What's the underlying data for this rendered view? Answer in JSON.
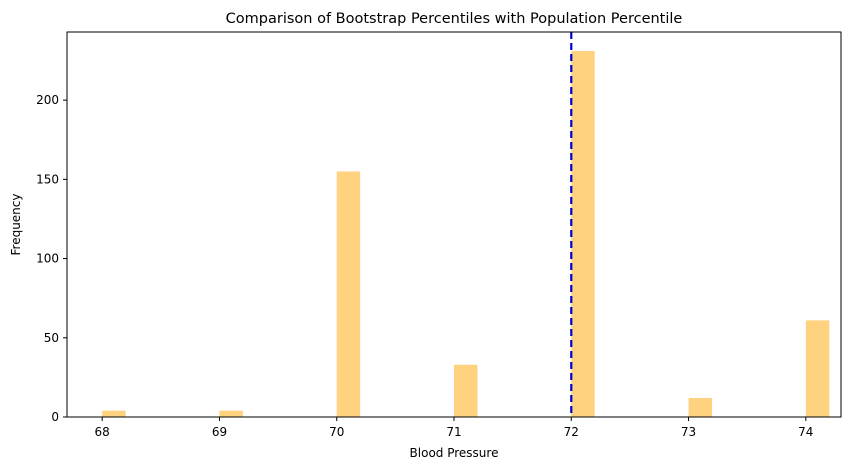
{
  "chart_data": {
    "type": "bar",
    "title": "Comparison of Bootstrap Percentiles with Population Percentile",
    "xlabel": "Blood Pressure",
    "ylabel": "Frequency",
    "xlim": [
      67.7,
      74.3
    ],
    "ylim": [
      0,
      243
    ],
    "xticks": [
      68,
      69,
      70,
      71,
      72,
      73,
      74
    ],
    "yticks": [
      0,
      50,
      100,
      150,
      200
    ],
    "bar_width": 0.2,
    "bar_color": "#ffd280",
    "bars": [
      {
        "x": 68,
        "value": 4
      },
      {
        "x": 69,
        "value": 4
      },
      {
        "x": 70,
        "value": 155
      },
      {
        "x": 71,
        "value": 33
      },
      {
        "x": 72,
        "value": 231
      },
      {
        "x": 73,
        "value": 12
      },
      {
        "x": 74,
        "value": 61
      }
    ],
    "reference_line": {
      "x": 72,
      "style": "dashed",
      "color": "#0000cc"
    }
  }
}
